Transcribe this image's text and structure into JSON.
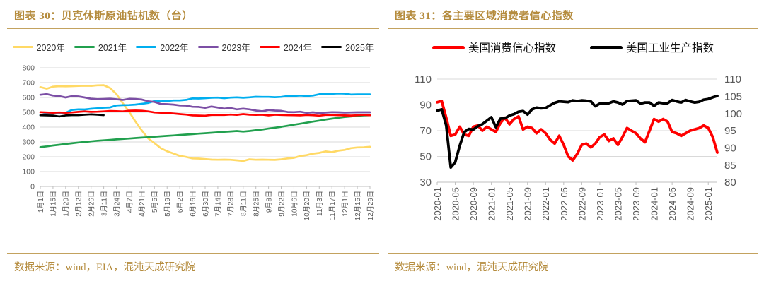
{
  "figures": [
    {
      "title": "图表  30：贝克休斯原油钻机数（台）",
      "source": "数据来源：wind，EIA，混沌天成研究院"
    },
    {
      "title": "图表  31：各主要区域消费者信心指数",
      "source": "数据来源：wind，混沌天成研究院"
    }
  ],
  "theme": {
    "title_color": "#B58C3E",
    "rule_color": "#C3A25E",
    "axis_text_color": "#595959",
    "grid_color": "#D9D9D9",
    "axis_line_color": "#BFBFBF",
    "background": "#FFFFFF"
  },
  "chart_data": [
    {
      "type": "line",
      "title": "贝克休斯原油钻机数（台）",
      "legend_position": "top",
      "grid": true,
      "y_axis": {
        "min": 0,
        "max": 800,
        "step": 100,
        "ticks": [
          0,
          100,
          200,
          300,
          400,
          500,
          600,
          700,
          800
        ]
      },
      "x_total_points": 53,
      "x_tick_step": 2,
      "x_tick_labels": [
        "1月1日",
        "1月15日",
        "1月29日",
        "2月12日",
        "2月26日",
        "3月11日",
        "3月24日",
        "4月7日",
        "4月21日",
        "5月5日",
        "5月19日",
        "6月2日",
        "6月16日",
        "6月30日",
        "7月14日",
        "7月28日",
        "8月11日",
        "8月25日",
        "9月8日",
        "9月22日",
        "10月6日",
        "10月20日",
        "11月3日",
        "11月17日",
        "12月1日",
        "12月15日",
        "12月29日"
      ],
      "series": [
        {
          "name": "2020年",
          "color": "#FFD965",
          "values": [
            670,
            659,
            673,
            676,
            675,
            676,
            678,
            679,
            678,
            682,
            683,
            664,
            624,
            562,
            504,
            438,
            378,
            325,
            292,
            258,
            237,
            222,
            206,
            199,
            189,
            188,
            185,
            181,
            180,
            181,
            180,
            176,
            172,
            183,
            180,
            181,
            180,
            179,
            183,
            189,
            193,
            205,
            211,
            221,
            226,
            236,
            231,
            241,
            246,
            258,
            263,
            264,
            267
          ]
        },
        {
          "name": "2021年",
          "color": "#21A04E",
          "values": [
            265,
            270,
            276,
            281,
            286,
            291,
            296,
            300,
            304,
            308,
            311,
            314,
            317,
            320,
            323,
            326,
            329,
            332,
            335,
            338,
            341,
            344,
            347,
            350,
            353,
            356,
            359,
            362,
            365,
            368,
            371,
            374,
            370,
            374,
            379,
            384,
            390,
            396,
            402,
            409,
            416,
            423,
            430,
            437,
            444,
            451,
            457,
            463,
            468,
            472,
            476,
            479,
            480
          ]
        },
        {
          "name": "2022年",
          "color": "#00AEEF",
          "values": [
            481,
            492,
            491,
            495,
            497,
            516,
            520,
            519,
            524,
            527,
            531,
            533,
            546,
            548,
            549,
            552,
            557,
            563,
            576,
            574,
            576,
            580,
            580,
            584,
            594,
            593,
            595,
            598,
            599,
            595,
            599,
            601,
            598,
            601,
            605,
            604,
            604,
            602,
            604,
            610,
            610,
            613,
            610,
            613,
            622,
            623,
            625,
            627,
            626,
            620,
            621,
            621,
            621
          ]
        },
        {
          "name": "2023年",
          "color": "#7C4FA5",
          "values": [
            618,
            623,
            613,
            609,
            600,
            609,
            607,
            600,
            592,
            589,
            590,
            592,
            588,
            584,
            591,
            590,
            586,
            575,
            570,
            556,
            555,
            552,
            546,
            545,
            537,
            536,
            530,
            539,
            532,
            525,
            529,
            520,
            525,
            520,
            512,
            507,
            515,
            512,
            510,
            502,
            501,
            504,
            496,
            500,
            495,
            498,
            501,
            500,
            498,
            499,
            500,
            500,
            500
          ]
        },
        {
          "name": "2024年",
          "color": "#FF0000",
          "values": [
            501,
            499,
            497,
            499,
            497,
            499,
            503,
            506,
            503,
            504,
            506,
            509,
            508,
            506,
            511,
            512,
            511,
            506,
            499,
            497,
            496,
            492,
            488,
            485,
            479,
            478,
            477,
            482,
            483,
            482,
            485,
            483,
            488,
            484,
            483,
            484,
            479,
            484,
            482,
            481,
            480,
            479,
            482,
            480,
            477,
            482,
            483,
            480,
            479,
            478,
            480,
            483,
            480
          ]
        },
        {
          "name": "2025年",
          "color": "#000000",
          "values": [
            480,
            479,
            478,
            472,
            479,
            481,
            481,
            484,
            486,
            484,
            481
          ]
        }
      ]
    },
    {
      "type": "line",
      "title": "各主要区域消费者信心指数",
      "legend_position": "top",
      "grid": true,
      "left_axis": {
        "min": 30,
        "max": 110,
        "step": 20,
        "ticks": [
          30,
          50,
          70,
          90,
          110
        ]
      },
      "right_axis": {
        "min": 80,
        "max": 110,
        "step": 5,
        "ticks": [
          80,
          85,
          90,
          95,
          100,
          105,
          110
        ]
      },
      "x_total_points": 63,
      "x_tick_step": 4,
      "x_tick_labels": [
        "2020-01",
        "2020-05",
        "2020-09",
        "2021-01",
        "2021-05",
        "2021-09",
        "2022-01",
        "2022-05",
        "2022-09",
        "2023-01",
        "2023-05",
        "2023-09",
        "2024-01",
        "2024-05",
        "2024-09",
        "2025-01"
      ],
      "series": [
        {
          "name": "美国消费信心指数",
          "color": "#FF0000",
          "axis": "left",
          "values": [
            92,
            93,
            80,
            66,
            67,
            73,
            67,
            66,
            73,
            74,
            70,
            73,
            71,
            69,
            76,
            80,
            75,
            79,
            81,
            71,
            73,
            72,
            68,
            71,
            68,
            63,
            60,
            66,
            59,
            50,
            47,
            52,
            59,
            60,
            57,
            60,
            65,
            67,
            62,
            64,
            59,
            65,
            72,
            70,
            68,
            64,
            61,
            70,
            79,
            77,
            79,
            77,
            69,
            68,
            66,
            68,
            70,
            71,
            72,
            74,
            72,
            65,
            53
          ]
        },
        {
          "name": "美国工业生产指数",
          "color": "#000000",
          "axis": "right",
          "values": [
            100.8,
            101.2,
            96.5,
            84.3,
            85.8,
            90.6,
            94.6,
            95.5,
            95.3,
            96.3,
            96.9,
            97.9,
            98.9,
            96.0,
            98.5,
            98.6,
            99.4,
            99.8,
            100.5,
            100.7,
            99.7,
            101.2,
            101.7,
            101.5,
            101.6,
            102.4,
            103.1,
            103.5,
            103.4,
            103.3,
            103.8,
            103.6,
            103.8,
            103.7,
            103.5,
            102.1,
            102.9,
            103.0,
            103.0,
            103.5,
            103.2,
            102.6,
            103.6,
            103.7,
            103.8,
            102.9,
            103.2,
            103.2,
            102.2,
            103.2,
            103.0,
            103.0,
            103.9,
            103.5,
            103.2,
            103.9,
            103.5,
            103.2,
            103.4,
            104.0,
            104.2,
            104.7,
            105.1
          ]
        }
      ]
    }
  ]
}
